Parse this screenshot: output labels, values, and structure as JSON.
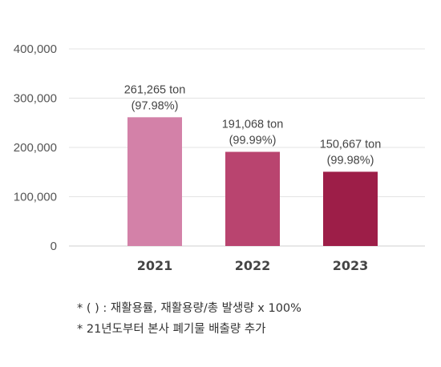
{
  "chart_data": {
    "type": "bar",
    "categories": [
      "2021",
      "2022",
      "2023"
    ],
    "values": [
      261265,
      191068,
      150667
    ],
    "data_labels": [
      {
        "value": "261,265 ton",
        "ratio": "(97.98%)"
      },
      {
        "value": "191,068 ton",
        "ratio": "(99.99%)"
      },
      {
        "value": "150,667 ton",
        "ratio": "(99.98%)"
      }
    ],
    "ylim": [
      0,
      400000
    ],
    "yticks": [
      0,
      100000,
      200000,
      300000,
      400000
    ],
    "ytick_labels": [
      "0",
      "100,000",
      "200,000",
      "300,000",
      "400,000"
    ],
    "bar_colors": [
      "#d381a8",
      "#b9446f",
      "#9d1e48"
    ],
    "grid": true,
    "title": "",
    "xlabel": "",
    "ylabel": ""
  },
  "notes": [
    "* (   ) : 재활용률, 재활용량/총 발생량 x 100%",
    "* 21년도부터 본사 폐기물 배출량 추가"
  ]
}
